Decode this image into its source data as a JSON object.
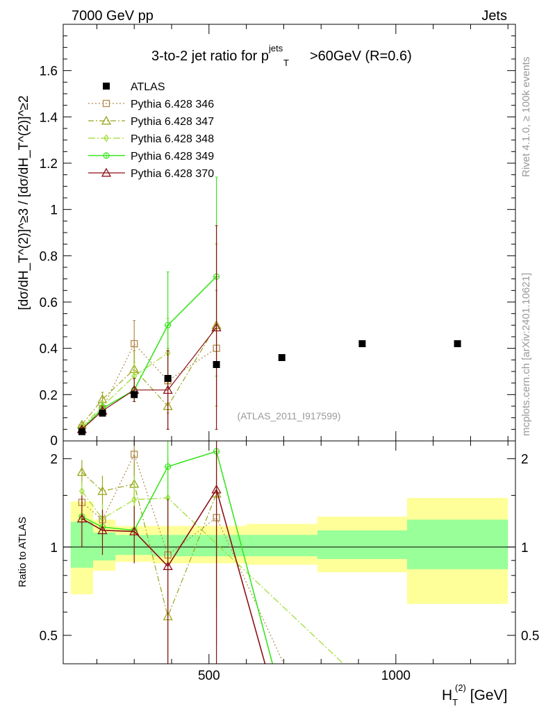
{
  "header": {
    "left": "7000 GeV pp",
    "right": "Jets",
    "side_top": "Rivet 4.1.0, ≥ 100k events",
    "side_bottom": "mcplots.cern.ch [arXiv:2401.10621]"
  },
  "colors": {
    "atlas": "#000000",
    "p346": "#b08a4a",
    "p347": "#9aa51c",
    "p348": "#9cdc2c",
    "p349": "#39e51f",
    "p370": "#8b0f16",
    "band_outer": "#ffff99",
    "band_inner": "#99ff99"
  },
  "chart_data": [
    {
      "type": "scatter",
      "title": "3-to-2 jet ratio for p_T^jets >60GeV (R=0.6)",
      "title_parts": {
        "pre": "3-to-2 jet ratio for p",
        "sup": "jets",
        "sub": "T",
        "post": ">60GeV (R=0.6)"
      },
      "ylabel": "[dσ/dH_T^(2)]^≥3 / [dσ/dH_T^(2)]^≥2",
      "watermark": "(ATLAS_2011_I917599)",
      "xlim": [
        110,
        1320
      ],
      "ylim": [
        0,
        1.8
      ],
      "yticks": [
        0.2,
        0.4,
        0.6,
        0.8,
        1,
        1.2,
        1.4,
        1.6
      ],
      "ytick_labels": [
        "0.2",
        "0.4",
        "0.6",
        "0.8",
        "1",
        "1.2",
        "1.4",
        "1.6"
      ],
      "y_zero_label": "0",
      "legend_position": "top-left",
      "series": [
        {
          "name": "ATLAS",
          "key": "atlas",
          "marker": "square-filled",
          "dash": "none",
          "x": [
            160,
            215,
            300,
            390,
            520,
            695,
            910,
            1165
          ],
          "y": [
            0.04,
            0.12,
            0.2,
            0.27,
            0.33,
            0.36,
            0.42,
            0.42
          ]
        },
        {
          "name": "Pythia 6.428 346",
          "key": "p346",
          "marker": "square-open",
          "dash": "2,3",
          "x": [
            160,
            215,
            300,
            390,
            520
          ],
          "y": [
            0.055,
            0.14,
            0.42,
            0.26,
            0.4
          ],
          "err": [
            0.01,
            0.02,
            0.1,
            0.14,
            0.25
          ]
        },
        {
          "name": "Pythia 6.428 347",
          "key": "p347",
          "marker": "triangle-open",
          "dash": "8,3,2,3",
          "x": [
            160,
            215,
            300,
            390,
            520
          ],
          "y": [
            0.07,
            0.18,
            0.31,
            0.15,
            0.5
          ],
          "err": [
            0.01,
            0.03,
            0.08,
            0.1,
            0.35
          ]
        },
        {
          "name": "Pythia 6.428 348",
          "key": "p348",
          "marker": "diamond-open",
          "dash": "10,3,2,3",
          "x": [
            160,
            215,
            300,
            390
          ],
          "y": [
            0.06,
            0.15,
            0.28,
            0.38
          ],
          "err": [
            0.01,
            0.02,
            0.06,
            0.15
          ]
        },
        {
          "name": "Pythia 6.428 349",
          "key": "p349",
          "marker": "cross-open",
          "dash": "none",
          "x": [
            160,
            215,
            300,
            390,
            520
          ],
          "y": [
            0.05,
            0.14,
            0.22,
            0.5,
            0.71
          ],
          "err": [
            0.01,
            0.02,
            0.05,
            0.23,
            0.43
          ]
        },
        {
          "name": "Pythia 6.428 370",
          "key": "p370",
          "marker": "triangle-open",
          "dash": "none",
          "x": [
            160,
            215,
            300,
            390,
            520
          ],
          "y": [
            0.05,
            0.13,
            0.22,
            0.22,
            0.49
          ],
          "err": [
            0.01,
            0.02,
            0.05,
            0.17,
            0.44
          ]
        }
      ]
    },
    {
      "type": "ratio",
      "ylabel": "Ratio to ATLAS",
      "xlabel": "H_T^(2) [GeV]",
      "xlabel_parts": {
        "pre": "H",
        "sub": "T",
        "sup": "(2)",
        "post": " [GeV]"
      },
      "yscale": "log",
      "xlim": [
        110,
        1320
      ],
      "ylim": [
        0.4,
        2.3
      ],
      "xticks": [
        500,
        1000
      ],
      "xtick_labels": [
        "500",
        "1000"
      ],
      "yticks": [
        0.5,
        1,
        2
      ],
      "ytick_labels": [
        "0.5",
        "1",
        "2"
      ],
      "reference": 1,
      "bands": [
        {
          "x0": 130,
          "x1": 190,
          "inner": [
            0.85,
            1.22
          ],
          "outer": [
            0.69,
            1.43
          ]
        },
        {
          "x0": 190,
          "x1": 250,
          "inner": [
            0.9,
            1.12
          ],
          "outer": [
            0.83,
            1.24
          ]
        },
        {
          "x0": 250,
          "x1": 350,
          "inner": [
            0.94,
            1.1
          ],
          "outer": [
            0.89,
            1.18
          ]
        },
        {
          "x0": 350,
          "x1": 450,
          "inner": [
            0.93,
            1.1
          ],
          "outer": [
            0.88,
            1.18
          ]
        },
        {
          "x0": 450,
          "x1": 600,
          "inner": [
            0.93,
            1.1
          ],
          "outer": [
            0.88,
            1.18
          ]
        },
        {
          "x0": 600,
          "x1": 790,
          "inner": [
            0.93,
            1.1
          ],
          "outer": [
            0.87,
            1.2
          ]
        },
        {
          "x0": 790,
          "x1": 1030,
          "inner": [
            0.91,
            1.14
          ],
          "outer": [
            0.82,
            1.27
          ]
        },
        {
          "x0": 1030,
          "x1": 1300,
          "inner": [
            0.84,
            1.24
          ],
          "outer": [
            0.64,
            1.47
          ]
        }
      ],
      "series": [
        {
          "key": "p346",
          "marker": "square-open",
          "dash": "2,3",
          "x": [
            160,
            215,
            300,
            390,
            520,
            700
          ],
          "y": [
            1.42,
            1.24,
            2.07,
            0.94,
            1.26,
            0.4
          ],
          "err": [
            0.08,
            0.12,
            0.35,
            0.5,
            0.8,
            0
          ]
        },
        {
          "key": "p347",
          "marker": "triangle-open",
          "dash": "8,3,2,3",
          "x": [
            160,
            215,
            300,
            390,
            520
          ],
          "y": [
            1.8,
            1.55,
            1.64,
            0.58,
            1.52
          ],
          "err": [
            0.18,
            0.2,
            0.3,
            0.35,
            0.9
          ]
        },
        {
          "key": "p348",
          "marker": "diamond-open",
          "dash": "10,3,2,3",
          "x": [
            160,
            215,
            300,
            390,
            860
          ],
          "y": [
            1.55,
            1.25,
            1.45,
            1.47,
            0.4
          ],
          "err": [
            0.12,
            0.15,
            0.3,
            0.55,
            0
          ]
        },
        {
          "key": "p349",
          "marker": "cross-open",
          "dash": "none",
          "x": [
            160,
            215,
            300,
            390,
            520,
            670
          ],
          "y": [
            1.27,
            1.17,
            1.14,
            1.88,
            2.12,
            0.4
          ],
          "err": [
            0.08,
            0.12,
            0.2,
            0.8,
            1.5,
            0
          ]
        },
        {
          "key": "p370",
          "marker": "triangle-open",
          "dash": "none",
          "x": [
            160,
            215,
            300,
            390,
            520,
            650
          ],
          "y": [
            1.25,
            1.14,
            1.13,
            0.86,
            1.57,
            0.4
          ],
          "err": [
            0.25,
            0.2,
            0.25,
            0.6,
            1.3,
            0
          ]
        }
      ]
    }
  ]
}
